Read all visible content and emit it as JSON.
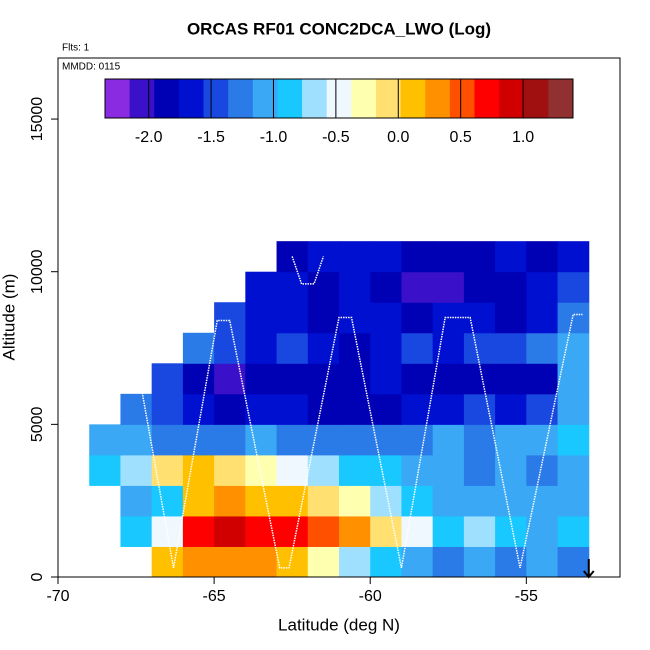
{
  "chart_data": {
    "type": "heatmap",
    "title": "ORCAS RF01 CONC2DCA_LWO (Log)",
    "annotations": [
      "Flts: 1",
      "MMDD: 0115"
    ],
    "x_label": "Latitude (deg N)",
    "y_label": "Altitude (m)",
    "xlim": [
      -70,
      -52
    ],
    "ylim": [
      0,
      17000
    ],
    "xticks": [
      -70,
      -65,
      -60,
      -55
    ],
    "yticks": [
      0,
      5000,
      10000,
      15000
    ],
    "x": [
      -68.5,
      -67.5,
      -66.5,
      -65.5,
      -64.5,
      -63.5,
      -62.5,
      -61.5,
      -60.5,
      -59.5,
      -58.5,
      -57.5,
      -56.5,
      -55.5,
      -54.5,
      -53.5
    ],
    "y": [
      500,
      1500,
      2500,
      3500,
      4500,
      5500,
      6500,
      7500,
      8500,
      9500,
      10500
    ],
    "z": [
      [
        null,
        null,
        0.1,
        0.3,
        0.4,
        0.3,
        0.2,
        -0.2,
        -0.6,
        -0.9,
        -1.1,
        -1.2,
        -1.1,
        -1.2,
        -1.1,
        -1.3
      ],
      [
        null,
        -0.9,
        -0.4,
        0.8,
        0.9,
        0.8,
        0.7,
        0.5,
        0.3,
        0.0,
        -0.4,
        -0.8,
        -0.7,
        -0.9,
        -1.0,
        -0.9
      ],
      [
        null,
        -1.1,
        -0.8,
        0.2,
        0.3,
        0.2,
        0.1,
        -0.1,
        -0.3,
        -0.6,
        -0.9,
        -1.0,
        -1.1,
        -1.0,
        -1.1,
        -1.0
      ],
      [
        -0.9,
        -0.7,
        -0.1,
        0.1,
        0.0,
        -0.2,
        -0.4,
        -0.6,
        -0.8,
        -0.9,
        -1.0,
        -1.1,
        -1.2,
        -1.1,
        -1.2,
        -1.0
      ],
      [
        -1.0,
        -1.1,
        -1.2,
        -1.3,
        -1.2,
        -1.1,
        -1.2,
        -1.3,
        -1.2,
        -1.3,
        -1.2,
        -1.1,
        -1.2,
        -1.1,
        -1.0,
        -0.9
      ],
      [
        null,
        -1.2,
        -1.5,
        -1.7,
        -1.8,
        -1.6,
        -1.7,
        -1.8,
        -1.9,
        -1.8,
        -1.7,
        -1.6,
        -1.5,
        -1.6,
        -1.5,
        -1.0
      ],
      [
        null,
        null,
        -1.4,
        -1.8,
        -2.1,
        -1.9,
        -1.8,
        -1.9,
        -1.8,
        -1.7,
        -1.9,
        -1.8,
        -1.9,
        -1.9,
        -1.8,
        -1.1
      ],
      [
        null,
        null,
        null,
        -1.3,
        -1.5,
        -1.6,
        -1.5,
        -1.7,
        -1.9,
        -1.6,
        -1.5,
        -1.7,
        -1.4,
        -1.5,
        -1.3,
        -1.0
      ],
      [
        null,
        null,
        null,
        null,
        -1.5,
        -1.6,
        -1.7,
        -1.8,
        -1.6,
        -1.7,
        -1.8,
        -1.6,
        -1.7,
        -1.8,
        -1.6,
        -1.2
      ],
      [
        null,
        null,
        null,
        null,
        null,
        -1.7,
        -1.6,
        -1.8,
        -1.7,
        -1.9,
        -2.1,
        -2.0,
        -1.8,
        -1.9,
        -1.7,
        -1.5
      ],
      [
        null,
        null,
        null,
        null,
        null,
        null,
        -1.8,
        -1.7,
        -1.6,
        -1.7,
        -1.8,
        -1.9,
        -1.8,
        -1.7,
        -1.8,
        -1.6
      ]
    ],
    "track": {
      "color": "#ffffff",
      "x": [
        -67.4,
        -66.3,
        -64.9,
        -64.5,
        -62.9,
        -62.6,
        -61.0,
        -60.6,
        -59.0,
        -57.6,
        -56.8,
        -55.2,
        -53.5,
        -53.2,
        null,
        -62.5,
        -62.2,
        -61.8,
        -61.5
      ],
      "y": [
        6600,
        300,
        8400,
        8400,
        300,
        300,
        8500,
        8500,
        300,
        8500,
        8500,
        300,
        8600,
        8600,
        null,
        10500,
        9600,
        9600,
        10500
      ]
    },
    "colorbar": {
      "lim": [
        -2.35,
        1.4
      ],
      "colors": [
        "#8a2be2",
        "#3a10c8",
        "#0000b4",
        "#0010d0",
        "#1848e0",
        "#2a7ae8",
        "#3aa8f5",
        "#19c8ff",
        "#a0e0ff",
        "#f0f8ff",
        "#ffffb0",
        "#ffe070",
        "#ffc000",
        "#ff9000",
        "#ff5000",
        "#ff0000",
        "#d00000",
        "#a01010",
        "#903030"
      ],
      "ticks": [
        {
          "value": -2,
          "label": "-2.0"
        },
        -1.5,
        {
          "value": -1,
          "label": "-1.0"
        },
        -0.5,
        {
          "value": 0,
          "label": "0.0"
        },
        0.5,
        {
          "value": 1,
          "label": "1.0"
        }
      ]
    }
  }
}
